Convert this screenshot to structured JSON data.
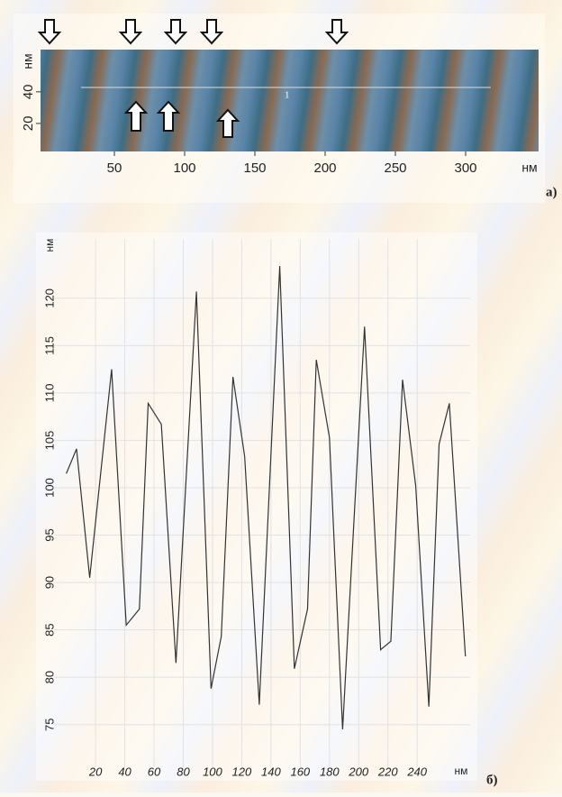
{
  "chart_data": [
    {
      "type": "image",
      "panel_label": "а)",
      "x_label": "нм",
      "y_label": "нм",
      "annotation": "1",
      "xlim": [
        0,
        350
      ],
      "xticks": [
        50,
        100,
        150,
        200,
        250,
        300
      ],
      "ylim": [
        0,
        65
      ],
      "yticks": [
        20,
        40
      ]
    },
    {
      "type": "line",
      "panel_label": "б)",
      "x_label": "нм",
      "y_label": "нм",
      "color": "#333333",
      "grid": true,
      "x": [
        0,
        7,
        16,
        31,
        41,
        50,
        56,
        65,
        75,
        89,
        99,
        106,
        114,
        122,
        132,
        146,
        156,
        165,
        171,
        180,
        189,
        204,
        215,
        222,
        230,
        239,
        248,
        255,
        262,
        273
      ],
      "values": [
        101.5,
        104.1,
        90.5,
        112.5,
        85.5,
        87.2,
        108.9,
        106.7,
        81.5,
        120.7,
        78.8,
        84.3,
        111.7,
        103.3,
        77.1,
        123.4,
        80.9,
        87.2,
        113.5,
        105.3,
        74.5,
        117,
        82.9,
        83.8,
        111.4,
        100.2,
        76.9,
        104.6,
        108.9,
        82.2
      ],
      "xlim": [
        -1,
        275
      ],
      "xticks": [
        20,
        40,
        60,
        80,
        100,
        120,
        140,
        160,
        180,
        200,
        220,
        240
      ],
      "ylim": [
        70.5,
        125.5
      ],
      "yticks": [
        75,
        80,
        85,
        90,
        95,
        100,
        105,
        110,
        115,
        120
      ]
    }
  ]
}
